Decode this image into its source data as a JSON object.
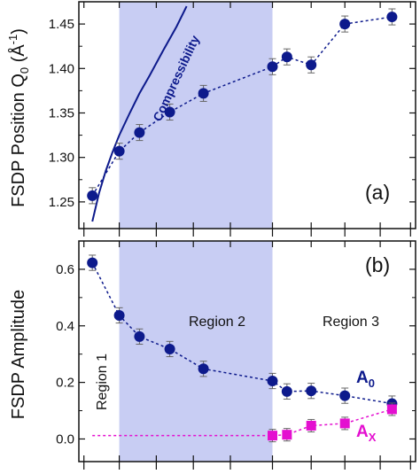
{
  "chart_data": [
    {
      "panel_label": "(a)",
      "type": "scatter",
      "ylabel": "FSDP Position Q",
      "ylabel_sub": "0",
      "ylabel_unit_open": " (Å",
      "ylabel_unit_sup": "-1",
      "ylabel_unit_close": ")",
      "ylim": [
        1.22,
        1.475
      ],
      "yticks": [
        1.25,
        1.3,
        1.35,
        1.4,
        1.45
      ],
      "ytick_labels": [
        "1.25",
        "1.30",
        "1.35",
        "1.40",
        "1.45"
      ],
      "xlim": [
        0,
        1
      ],
      "shaded_region_x": [
        0.12,
        0.575
      ],
      "shade_color": "#c8cdf3",
      "series": [
        {
          "color": "#0d1a8c",
          "marker": "circle",
          "fit": "dashed",
          "x": [
            0.04,
            0.12,
            0.18,
            0.27,
            0.37,
            0.575,
            0.618,
            0.69,
            0.79,
            0.93
          ],
          "y": [
            1.257,
            1.307,
            1.328,
            1.351,
            1.372,
            1.402,
            1.413,
            1.404,
            1.45,
            1.458
          ],
          "yerr": 0.009
        }
      ],
      "curve": {
        "label": "Compressibility",
        "color": "#0d1a8c",
        "x": [
          0.04,
          0.06,
          0.08,
          0.1,
          0.12,
          0.15,
          0.18,
          0.21,
          0.25,
          0.29,
          0.32
        ],
        "y": [
          1.228,
          1.26,
          1.285,
          1.306,
          1.325,
          1.349,
          1.372,
          1.392,
          1.42,
          1.447,
          1.47
        ]
      }
    },
    {
      "panel_label": "(b)",
      "type": "scatter",
      "ylabel": "FSDP Amplitude",
      "ylim": [
        -0.08,
        0.7
      ],
      "yticks": [
        0.0,
        0.2,
        0.4,
        0.6
      ],
      "ytick_labels": [
        "0.0",
        "0.2",
        "0.4",
        "0.6"
      ],
      "xlim": [
        0,
        1
      ],
      "shaded_region_x": [
        0.12,
        0.575
      ],
      "shade_color": "#c8cdf3",
      "region_labels": [
        "Region 1",
        "Region 2",
        "Region 3"
      ],
      "series": [
        {
          "name": "A",
          "name_sub": "0",
          "color": "#0d1a8c",
          "marker": "circle",
          "fit": "dashed",
          "x": [
            0.04,
            0.12,
            0.18,
            0.27,
            0.37,
            0.575,
            0.618,
            0.69,
            0.79,
            0.93
          ],
          "y": [
            0.623,
            0.437,
            0.362,
            0.318,
            0.248,
            0.205,
            0.168,
            0.17,
            0.153,
            0.125
          ],
          "yerr": 0.027
        },
        {
          "name": "A",
          "name_sub": "X",
          "color": "#e40fd0",
          "marker": "square",
          "fit": "dashed",
          "x": [
            0.575,
            0.618,
            0.69,
            0.79,
            0.93
          ],
          "y": [
            0.012,
            0.015,
            0.047,
            0.055,
            0.105
          ],
          "yerr": 0.022,
          "fit_from_x": 0.04
        }
      ]
    }
  ]
}
